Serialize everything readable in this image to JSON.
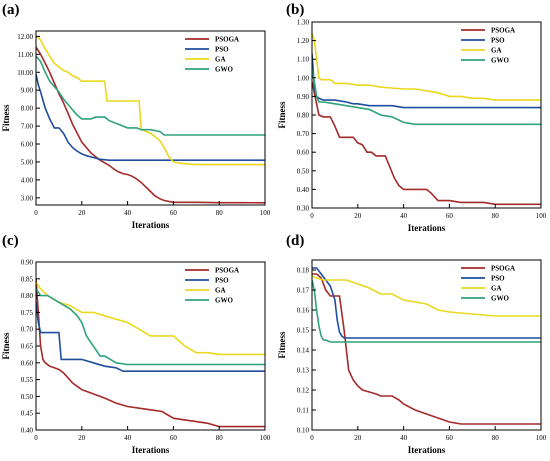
{
  "figure": {
    "panels_order": [
      "a",
      "b",
      "c",
      "d"
    ]
  },
  "colors": {
    "PSOGA": "#a52a2a",
    "PSO": "#1f4e9e",
    "GA": "#e8d81e",
    "GWO": "#2fa37a"
  },
  "chart_data": [
    {
      "panel_label": "(a)",
      "type": "line",
      "xlabel": "Iterations",
      "ylabel": "Fitness",
      "xlim": [
        0,
        100
      ],
      "ylim": [
        2.6,
        12.3
      ],
      "xticks": [
        0,
        20,
        40,
        60,
        80,
        100
      ],
      "yticks": [
        3.0,
        4.0,
        5.0,
        6.0,
        7.0,
        8.0,
        9.0,
        10.0,
        11.0,
        12.0
      ],
      "ytick_labels": [
        "3.00",
        "4.00",
        "5.00",
        "6.00",
        "7.00",
        "8.00",
        "9.00",
        "10.00",
        "11.00",
        "12.00"
      ],
      "grid": false,
      "legend": "top-right",
      "series": [
        {
          "name": "PSOGA",
          "x": [
            0,
            2,
            4,
            6,
            8,
            10,
            12,
            14,
            16,
            18,
            20,
            22,
            24,
            26,
            28,
            30,
            32,
            34,
            36,
            38,
            40,
            42,
            44,
            46,
            48,
            50,
            52,
            54,
            56,
            58,
            60,
            65,
            70,
            80,
            90,
            100
          ],
          "y": [
            11.4,
            11.0,
            10.5,
            10.0,
            9.4,
            8.8,
            8.3,
            7.7,
            7.1,
            6.6,
            6.1,
            5.8,
            5.5,
            5.3,
            5.1,
            4.95,
            4.8,
            4.6,
            4.45,
            4.35,
            4.3,
            4.2,
            4.05,
            3.85,
            3.6,
            3.35,
            3.1,
            2.95,
            2.85,
            2.8,
            2.75,
            2.75,
            2.75,
            2.73,
            2.73,
            2.72
          ]
        },
        {
          "name": "PSO",
          "x": [
            0,
            1,
            2,
            4,
            6,
            8,
            10,
            12,
            14,
            16,
            18,
            20,
            22,
            25,
            28,
            32,
            40,
            60,
            80,
            100
          ],
          "y": [
            9.9,
            9.3,
            8.9,
            8.0,
            7.4,
            6.9,
            6.9,
            6.6,
            6.1,
            5.8,
            5.6,
            5.45,
            5.35,
            5.25,
            5.15,
            5.1,
            5.1,
            5.1,
            5.1,
            5.1
          ]
        },
        {
          "name": "GA",
          "x": [
            0,
            2,
            4,
            6,
            8,
            10,
            12,
            14,
            16,
            18,
            20,
            22,
            24,
            30,
            31,
            45,
            46,
            48,
            50,
            52,
            54,
            56,
            58,
            60,
            62,
            65,
            70,
            100
          ],
          "y": [
            12.0,
            11.8,
            11.3,
            10.9,
            10.5,
            10.3,
            10.1,
            10.0,
            9.8,
            9.7,
            9.5,
            9.5,
            9.5,
            9.5,
            8.4,
            8.4,
            6.8,
            6.7,
            6.6,
            6.4,
            6.2,
            5.8,
            5.3,
            5.0,
            4.95,
            4.9,
            4.85,
            4.85
          ]
        },
        {
          "name": "GWO",
          "x": [
            0,
            2,
            4,
            6,
            8,
            10,
            12,
            14,
            16,
            18,
            20,
            24,
            26,
            30,
            32,
            36,
            40,
            44,
            46,
            50,
            54,
            56,
            60,
            80,
            100
          ],
          "y": [
            10.9,
            10.6,
            10.0,
            9.5,
            9.2,
            8.9,
            8.5,
            8.2,
            7.9,
            7.6,
            7.4,
            7.4,
            7.5,
            7.5,
            7.3,
            7.1,
            6.9,
            6.9,
            6.8,
            6.8,
            6.7,
            6.5,
            6.5,
            6.5,
            6.5
          ]
        }
      ]
    },
    {
      "panel_label": "(b)",
      "type": "line",
      "xlabel": "Iterations",
      "ylabel": "Fitness",
      "xlim": [
        0,
        100
      ],
      "ylim": [
        0.3,
        1.3
      ],
      "xticks": [
        0,
        20,
        40,
        60,
        80,
        100
      ],
      "yticks": [
        0.3,
        0.4,
        0.5,
        0.6,
        0.7,
        0.8,
        0.9,
        1.0,
        1.1,
        1.2,
        1.3
      ],
      "ytick_labels": [
        "0.30",
        "0.40",
        "0.50",
        "0.60",
        "0.70",
        "0.80",
        "0.90",
        "1.00",
        "1.10",
        "1.20",
        "1.30"
      ],
      "grid": false,
      "legend": "top-right",
      "series": [
        {
          "name": "PSOGA",
          "x": [
            0,
            1,
            2,
            3,
            5,
            8,
            10,
            12,
            14,
            16,
            18,
            20,
            22,
            24,
            26,
            28,
            30,
            32,
            34,
            36,
            38,
            40,
            45,
            50,
            52,
            55,
            60,
            65,
            70,
            75,
            80,
            90,
            100
          ],
          "y": [
            0.98,
            0.92,
            0.86,
            0.8,
            0.79,
            0.79,
            0.74,
            0.68,
            0.68,
            0.68,
            0.68,
            0.65,
            0.64,
            0.6,
            0.6,
            0.58,
            0.58,
            0.58,
            0.52,
            0.46,
            0.42,
            0.4,
            0.4,
            0.4,
            0.38,
            0.34,
            0.34,
            0.33,
            0.33,
            0.33,
            0.32,
            0.32,
            0.32
          ]
        },
        {
          "name": "PSO",
          "x": [
            0,
            1,
            2,
            3,
            5,
            10,
            15,
            18,
            20,
            25,
            30,
            35,
            40,
            60,
            80,
            100
          ],
          "y": [
            1.13,
            0.95,
            0.9,
            0.89,
            0.88,
            0.88,
            0.87,
            0.86,
            0.86,
            0.85,
            0.85,
            0.85,
            0.84,
            0.84,
            0.84,
            0.84
          ]
        },
        {
          "name": "GA",
          "x": [
            0,
            1,
            2,
            3,
            4,
            8,
            10,
            15,
            20,
            25,
            30,
            40,
            45,
            50,
            55,
            60,
            65,
            70,
            75,
            80,
            100
          ],
          "y": [
            1.24,
            1.2,
            1.1,
            1.0,
            0.99,
            0.99,
            0.97,
            0.97,
            0.96,
            0.96,
            0.95,
            0.94,
            0.94,
            0.93,
            0.92,
            0.9,
            0.9,
            0.89,
            0.89,
            0.88,
            0.88
          ]
        },
        {
          "name": "GWO",
          "x": [
            0,
            1,
            2,
            3,
            5,
            10,
            15,
            20,
            25,
            30,
            35,
            40,
            45,
            60,
            80,
            100
          ],
          "y": [
            1.05,
            0.98,
            0.9,
            0.87,
            0.87,
            0.86,
            0.85,
            0.84,
            0.83,
            0.8,
            0.79,
            0.76,
            0.75,
            0.75,
            0.75,
            0.75
          ]
        }
      ]
    },
    {
      "panel_label": "(c)",
      "type": "line",
      "xlabel": "Iterations",
      "ylabel": "Fitness",
      "xlim": [
        0,
        100
      ],
      "ylim": [
        0.4,
        0.9
      ],
      "xticks": [
        0,
        20,
        40,
        60,
        80,
        100
      ],
      "yticks": [
        0.4,
        0.45,
        0.5,
        0.55,
        0.6,
        0.65,
        0.7,
        0.75,
        0.8,
        0.85,
        0.9
      ],
      "ytick_labels": [
        "0.40",
        "0.45",
        "0.50",
        "0.55",
        "0.60",
        "0.65",
        "0.70",
        "0.75",
        "0.80",
        "0.85",
        "0.90"
      ],
      "grid": false,
      "legend": "top-right",
      "series": [
        {
          "name": "PSOGA",
          "x": [
            0,
            1,
            2,
            3,
            4,
            6,
            8,
            10,
            12,
            14,
            16,
            18,
            20,
            24,
            26,
            28,
            30,
            35,
            40,
            45,
            50,
            55,
            60,
            65,
            70,
            75,
            80,
            90,
            100
          ],
          "y": [
            0.85,
            0.75,
            0.65,
            0.61,
            0.6,
            0.59,
            0.585,
            0.58,
            0.57,
            0.555,
            0.54,
            0.53,
            0.52,
            0.51,
            0.505,
            0.5,
            0.495,
            0.48,
            0.47,
            0.465,
            0.46,
            0.455,
            0.435,
            0.43,
            0.425,
            0.42,
            0.41,
            0.41,
            0.41
          ]
        },
        {
          "name": "PSO",
          "x": [
            0,
            1,
            2,
            3,
            10,
            11,
            12,
            20,
            25,
            30,
            35,
            38,
            40,
            60,
            80,
            100
          ],
          "y": [
            0.78,
            0.72,
            0.69,
            0.69,
            0.69,
            0.61,
            0.61,
            0.61,
            0.6,
            0.59,
            0.585,
            0.575,
            0.575,
            0.575,
            0.575,
            0.575
          ]
        },
        {
          "name": "GA",
          "x": [
            0,
            1,
            2,
            5,
            10,
            15,
            20,
            25,
            30,
            40,
            45,
            50,
            55,
            60,
            65,
            70,
            75,
            80,
            100
          ],
          "y": [
            0.84,
            0.83,
            0.82,
            0.8,
            0.78,
            0.77,
            0.75,
            0.75,
            0.74,
            0.72,
            0.7,
            0.68,
            0.68,
            0.68,
            0.65,
            0.63,
            0.63,
            0.625,
            0.625
          ]
        },
        {
          "name": "GWO",
          "x": [
            0,
            1,
            2,
            5,
            10,
            15,
            18,
            20,
            22,
            25,
            28,
            30,
            35,
            40,
            60,
            80,
            100
          ],
          "y": [
            0.82,
            0.81,
            0.8,
            0.8,
            0.78,
            0.76,
            0.74,
            0.72,
            0.68,
            0.65,
            0.62,
            0.62,
            0.6,
            0.595,
            0.595,
            0.595,
            0.595
          ]
        }
      ]
    },
    {
      "panel_label": "(d)",
      "type": "line",
      "xlabel": "Iterations",
      "ylabel": "Fitness",
      "xlim": [
        0,
        100
      ],
      "ylim": [
        0.1,
        0.185
      ],
      "xticks": [
        0,
        20,
        40,
        60,
        80,
        100
      ],
      "yticks": [
        0.1,
        0.11,
        0.12,
        0.13,
        0.14,
        0.15,
        0.16,
        0.17,
        0.18
      ],
      "ytick_labels": [
        "0.10",
        "0.11",
        "0.12",
        "0.13",
        "0.14",
        "0.15",
        "0.16",
        "0.17",
        "0.18"
      ],
      "grid": false,
      "legend": "top-right",
      "series": [
        {
          "name": "PSOGA",
          "x": [
            0,
            2,
            4,
            6,
            8,
            10,
            12,
            14,
            15,
            16,
            18,
            20,
            22,
            25,
            28,
            30,
            32,
            35,
            38,
            40,
            45,
            50,
            55,
            60,
            65,
            70,
            80,
            90,
            100
          ],
          "y": [
            0.178,
            0.178,
            0.176,
            0.17,
            0.167,
            0.167,
            0.167,
            0.15,
            0.14,
            0.13,
            0.125,
            0.122,
            0.12,
            0.119,
            0.118,
            0.117,
            0.117,
            0.117,
            0.115,
            0.113,
            0.11,
            0.108,
            0.106,
            0.104,
            0.103,
            0.103,
            0.103,
            0.103,
            0.103
          ]
        },
        {
          "name": "PSO",
          "x": [
            0,
            2,
            4,
            6,
            8,
            10,
            11,
            12,
            13,
            14,
            20,
            40,
            60,
            80,
            100
          ],
          "y": [
            0.181,
            0.181,
            0.178,
            0.175,
            0.172,
            0.165,
            0.155,
            0.149,
            0.147,
            0.146,
            0.146,
            0.146,
            0.146,
            0.146,
            0.146
          ]
        },
        {
          "name": "GA",
          "x": [
            0,
            2,
            5,
            10,
            15,
            20,
            25,
            30,
            35,
            40,
            45,
            50,
            55,
            60,
            70,
            80,
            100
          ],
          "y": [
            0.177,
            0.176,
            0.175,
            0.175,
            0.175,
            0.173,
            0.171,
            0.168,
            0.168,
            0.165,
            0.164,
            0.163,
            0.16,
            0.159,
            0.158,
            0.157,
            0.157
          ]
        },
        {
          "name": "GWO",
          "x": [
            0,
            1,
            2,
            3,
            4,
            5,
            6,
            8,
            10,
            15,
            20,
            40,
            60,
            80,
            100
          ],
          "y": [
            0.175,
            0.17,
            0.16,
            0.152,
            0.147,
            0.145,
            0.145,
            0.144,
            0.144,
            0.144,
            0.144,
            0.144,
            0.144,
            0.144,
            0.144
          ]
        }
      ]
    }
  ]
}
